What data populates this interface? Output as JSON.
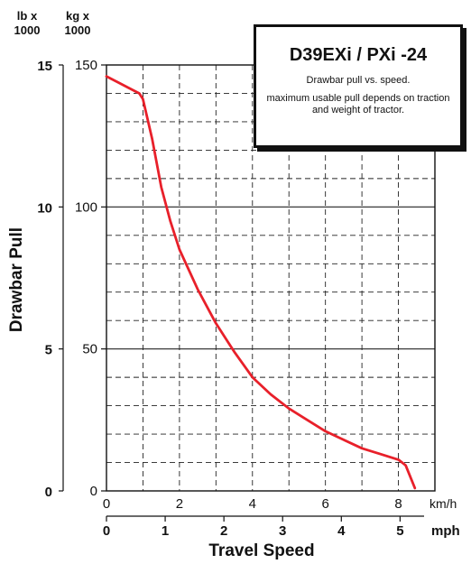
{
  "header": {
    "unit_lb": "lb x\n1000",
    "unit_kg": "kg x\n1000",
    "unit_lb_line1": "lb x",
    "unit_lb_line2": "1000",
    "unit_kg_line1": "kg x",
    "unit_kg_line2": "1000"
  },
  "info_box": {
    "title": "D39EXi / PXi -24",
    "subtitle": "Drawbar pull vs. speed.",
    "note": "maximum usable pull depends on traction and weight of tractor."
  },
  "chart_data": {
    "type": "line",
    "title": "D39EXi / PXi -24",
    "xlabel": "Travel Speed",
    "ylabel": "Drawbar Pull",
    "x_unit_primary": "km/h",
    "x_unit_secondary": "mph",
    "xlim": [
      0,
      9
    ],
    "ylim": [
      0,
      150
    ],
    "x_ticks_kmh": [
      "0",
      "2",
      "4",
      "6",
      "8"
    ],
    "x_ticks_mph": [
      "0",
      "1",
      "2",
      "3",
      "4",
      "5"
    ],
    "y_ticks_kg": [
      "0",
      "50",
      "100",
      "150"
    ],
    "y_ticks_lb": [
      "0",
      "5",
      "10",
      "15"
    ],
    "grid": true,
    "series": [
      {
        "color": "#e8202a",
        "x": [
          0,
          0.3,
          0.6,
          0.9,
          1.0,
          1.25,
          1.5,
          1.75,
          2.0,
          2.5,
          3.0,
          3.5,
          4.0,
          4.5,
          5.0,
          5.5,
          6.0,
          6.5,
          7.0,
          7.5,
          8.0,
          8.2,
          8.45
        ],
        "y": [
          146,
          144,
          142,
          140,
          138,
          124,
          107,
          95,
          85,
          71,
          59,
          49,
          40,
          34,
          29,
          25,
          21,
          18,
          15,
          13,
          11,
          9,
          1
        ]
      }
    ]
  }
}
